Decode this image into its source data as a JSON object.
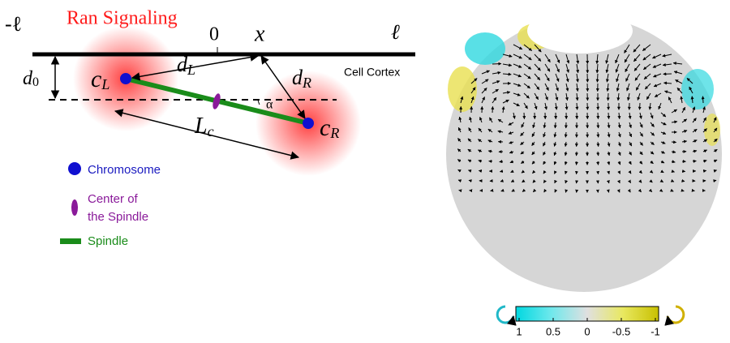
{
  "diagram": {
    "left_bound": "-ℓ",
    "title": "Ran Signaling",
    "origin": "0",
    "position": "x",
    "right_bound": "ℓ",
    "distance": {
      "text": "d",
      "sub": "0"
    },
    "chromosome_left": {
      "text": "c",
      "sub": "L"
    },
    "distance_left": {
      "text": "d",
      "sub": "L"
    },
    "distance_right": {
      "text": "d",
      "sub": "R"
    },
    "cortex_label": "Cell Cortex",
    "angle": "α",
    "spindle_length": {
      "text": "L",
      "sub": "c"
    },
    "chromosome_right": {
      "text": "c",
      "sub": "R"
    },
    "legend": [
      {
        "label": [
          "Chromosome"
        ]
      },
      {
        "label": [
          "Center of",
          "the Spindle"
        ]
      },
      {
        "label": [
          "Spindle"
        ]
      }
    ]
  },
  "colorbar": {
    "ticks": [
      1,
      0.5,
      0,
      -0.5,
      -1
    ]
  }
}
